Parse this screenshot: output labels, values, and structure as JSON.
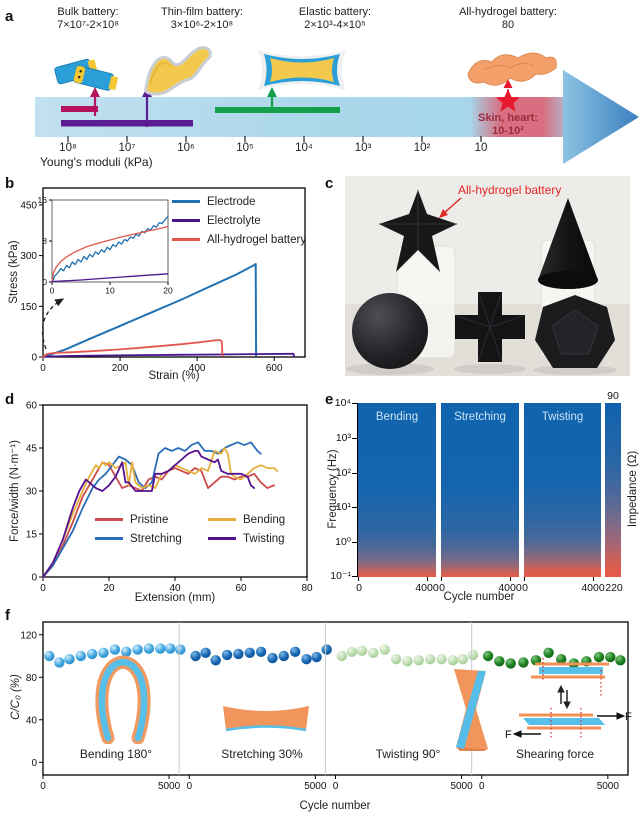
{
  "panels": {
    "a": "a",
    "b": "b",
    "c": "c",
    "d": "d",
    "e": "e",
    "f": "f"
  },
  "panel_a": {
    "batteries": [
      {
        "name": "Bulk battery:",
        "range": "7×10⁷-2×10⁸"
      },
      {
        "name": "Thin-film battery:",
        "range": "3×10⁶-2×10⁸"
      },
      {
        "name": "Elastic battery:",
        "range": "2×10³-4×10⁵"
      },
      {
        "name": "All-hydrogel battery:",
        "range": "80"
      }
    ],
    "skin": {
      "label": "Skin, heart:",
      "range": "10-10²"
    },
    "ticks": [
      "10⁸",
      "10⁷",
      "10⁶",
      "10⁵",
      "10⁴",
      "10³",
      "10²",
      "10"
    ],
    "axis_label": "Young's moduli (kPa)",
    "colors": {
      "bulk_bar": "#b5135c",
      "film_bar": "#5c1d94",
      "elastic_bar": "#14a04a",
      "star": "#e8192c",
      "shaft": "#aed7ea"
    }
  },
  "panel_c": {
    "annotation": "All-hydrogel battery"
  },
  "chart_data": [
    {
      "id": "panel_b_main",
      "type": "line",
      "xlabel": "Strain (%)",
      "ylabel": "Stress (kPa)",
      "xlim": [
        0,
        680
      ],
      "ylim": [
        0,
        500
      ],
      "xticks": [
        0,
        200,
        400,
        600
      ],
      "yticks": [
        0,
        150,
        300,
        450
      ],
      "series": [
        {
          "name": "Electrode",
          "color": "#2272b2",
          "width": 2,
          "x": [
            0,
            20,
            60,
            120,
            200,
            280,
            360,
            440,
            500,
            548,
            552,
            553
          ],
          "y": [
            0,
            7,
            23,
            53,
            92,
            131,
            170,
            212,
            243,
            272,
            275,
            4
          ]
        },
        {
          "name": "Electrolyte",
          "color": "#4a1790",
          "width": 1.8,
          "x": [
            0,
            60,
            150,
            250,
            350,
            450,
            550,
            640,
            650,
            652
          ],
          "y": [
            1,
            3,
            4.5,
            5.5,
            6.5,
            7.5,
            8.5,
            9.5,
            9.5,
            1
          ]
        },
        {
          "name": "All-hydrogel battery",
          "color": "#e2574d",
          "width": 1.8,
          "x": [
            0,
            10,
            30,
            70,
            120,
            180,
            240,
            300,
            360,
            410,
            445,
            460,
            464,
            466
          ],
          "y": [
            0,
            9,
            12,
            14,
            17,
            21,
            26,
            32,
            38,
            44,
            49,
            50,
            46,
            3
          ]
        }
      ]
    },
    {
      "id": "panel_b_inset",
      "type": "line",
      "small": true,
      "frame": "#666",
      "xlim": [
        0,
        20
      ],
      "ylim": [
        0,
        16
      ],
      "xticks": [
        0,
        10,
        20
      ],
      "yticks": [
        0,
        8,
        16
      ],
      "series": [
        {
          "name": "Electrode",
          "color": "#2272b2",
          "width": 1.3,
          "x": [
            0,
            0.5,
            1,
            1.5,
            2,
            2.5,
            3,
            3.5,
            4,
            4.5,
            5,
            5.5,
            6,
            6.5,
            7,
            7.5,
            8,
            8.5,
            9,
            9.5,
            10,
            10.5,
            11,
            11.5,
            12,
            12.5,
            13,
            13.5,
            14,
            14.5,
            15,
            15.5,
            16,
            16.5,
            17,
            17.5,
            18,
            18.5,
            19,
            19.5,
            20
          ],
          "y": [
            0,
            1.2,
            1.8,
            2.6,
            2.2,
            3.2,
            2.8,
            3.9,
            3.4,
            4.4,
            3.9,
            5,
            4.4,
            5.4,
            4.9,
            5.9,
            5.4,
            6.3,
            5.8,
            6.8,
            6.3,
            7.3,
            6.9,
            7.8,
            7.4,
            8.3,
            8,
            8.8,
            8.5,
            9.3,
            9,
            9.9,
            9.6,
            10.4,
            10.1,
            11,
            10.7,
            11.6,
            11.4,
            12.2,
            12.8
          ]
        },
        {
          "name": "All-hydrogel battery",
          "color": "#e2574d",
          "width": 1.3,
          "x": [
            0,
            0.3,
            0.8,
            1.5,
            2.5,
            4,
            6,
            8,
            10,
            12,
            14,
            16,
            18,
            20
          ],
          "y": [
            0,
            2,
            3,
            4,
            4.9,
            5.9,
            6.9,
            7.6,
            8.2,
            8.8,
            9.3,
            9.8,
            10.3,
            10.8
          ]
        },
        {
          "name": "Electrolyte",
          "color": "#4a1790",
          "width": 1.3,
          "x": [
            0,
            5,
            10,
            15,
            20
          ],
          "y": [
            0.1,
            0.4,
            0.8,
            1.2,
            1.6
          ]
        }
      ]
    },
    {
      "id": "panel_d",
      "type": "line",
      "xlabel": "Extension (mm)",
      "ylabel": "Force/width (N·m⁻¹)",
      "xlim": [
        0,
        80
      ],
      "ylim": [
        0,
        60
      ],
      "xticks": [
        0,
        20,
        40,
        60,
        80
      ],
      "yticks": [
        0,
        15,
        30,
        45,
        60
      ],
      "series": [
        {
          "name": "Pristine",
          "color": "#cc4a4a",
          "width": 1.8,
          "x": [
            0,
            3,
            6,
            9,
            12,
            14,
            16,
            18,
            20,
            22,
            24,
            26,
            28,
            30,
            32,
            34,
            36,
            38,
            40,
            42,
            44,
            46,
            48,
            50,
            52,
            54,
            56,
            58,
            60,
            62,
            64,
            66,
            68,
            70
          ],
          "y": [
            0,
            4,
            11,
            19,
            28,
            32,
            36,
            40,
            39,
            35,
            31,
            32,
            31,
            30,
            34,
            35,
            34,
            37,
            38,
            37,
            36,
            38,
            37,
            31,
            33,
            35,
            35,
            34,
            35,
            35,
            36,
            33,
            31,
            32
          ]
        },
        {
          "name": "Stretching",
          "color": "#2a6db8",
          "width": 1.8,
          "x": [
            0,
            3,
            6,
            9,
            12,
            15,
            17,
            19,
            21,
            23,
            25,
            27,
            29,
            31,
            33,
            35,
            37,
            39,
            41,
            43,
            45,
            47,
            49,
            51,
            53,
            55,
            57,
            59,
            61,
            63,
            65,
            66
          ],
          "y": [
            0,
            4,
            10,
            16,
            24,
            31,
            34,
            36,
            39,
            42,
            41,
            39,
            33,
            31,
            33,
            43,
            45,
            44,
            45,
            44,
            46,
            47,
            44,
            44,
            43,
            45,
            46,
            47,
            46,
            47,
            44,
            43
          ]
        },
        {
          "name": "Bending",
          "color": "#e6af3c",
          "width": 1.8,
          "x": [
            0,
            3,
            6,
            9,
            12,
            14,
            16,
            17,
            18,
            19,
            20,
            22,
            24,
            25,
            26,
            27,
            28,
            30,
            32,
            34,
            36,
            38,
            40,
            42,
            44,
            46,
            48,
            50,
            52,
            54,
            55,
            56,
            57,
            58,
            60,
            62,
            64,
            66,
            68,
            70,
            71
          ],
          "y": [
            0,
            5,
            13,
            22,
            30,
            35,
            39,
            38,
            40,
            39,
            40,
            38,
            39,
            40,
            32,
            40,
            33,
            31,
            32,
            31,
            36,
            37,
            39,
            38,
            37,
            36,
            38,
            37,
            44,
            43,
            45,
            43,
            36,
            35,
            34,
            36,
            38,
            39,
            38,
            38,
            37
          ]
        },
        {
          "name": "Twisting",
          "color": "#55118f",
          "width": 1.8,
          "x": [
            0,
            3,
            6,
            9,
            11,
            13,
            14,
            16,
            18,
            20,
            22,
            24,
            25,
            26,
            28,
            30,
            32,
            33,
            34,
            36,
            38,
            40,
            42,
            44,
            46,
            47,
            48,
            50,
            52,
            53,
            54,
            56,
            58,
            60,
            62,
            63,
            64
          ],
          "y": [
            0,
            5,
            13,
            24,
            30,
            34,
            33,
            31,
            30,
            32,
            35,
            40,
            33,
            33,
            30,
            30,
            30,
            30,
            36,
            36,
            37,
            39,
            41,
            43,
            44,
            44,
            42,
            41,
            40,
            41,
            37,
            36,
            36,
            36,
            35,
            32,
            31
          ]
        }
      ]
    },
    {
      "id": "panel_e",
      "type": "heatmap",
      "xlabel": "Cycle number",
      "ylabel": "Frequency (Hz)",
      "sections": [
        "Bending",
        "Stretching",
        "Twisting"
      ],
      "yticks": [
        "10⁴",
        "10³",
        "10²",
        "10¹",
        "10⁰",
        "10⁻¹"
      ],
      "xticks": [
        "0",
        "4000"
      ],
      "colorbar": {
        "top": "90",
        "bottom": "220",
        "label": "Impedance (Ω)",
        "high_color": "#1063ad",
        "low_color": "#e55c49"
      }
    },
    {
      "id": "panel_f",
      "type": "scatter_sections",
      "xlabel": "Cycle number",
      "ylabel": "C/C₀ (%)",
      "xlim": [
        0,
        23200
      ],
      "ylim": [
        -12,
        132
      ],
      "yticks": [
        0,
        40,
        80,
        120
      ],
      "section_width": 5800,
      "xsection_ticks": [
        0,
        5000
      ],
      "f_arrow_label": "F",
      "sphere_colors": [
        "#3fa3dd",
        "#1565b0",
        "#b7d9aa",
        "#1b7c1e"
      ],
      "sections": [
        {
          "label": "Bending 180°",
          "x": [
            250,
            650,
            1050,
            1500,
            1950,
            2400,
            2850,
            3300,
            3750,
            4200,
            4650,
            5050,
            5450
          ],
          "values": [
            100,
            94,
            97,
            100,
            102,
            103,
            106,
            104,
            106,
            107,
            107,
            107,
            106
          ]
        },
        {
          "label": "Stretching 30%",
          "x": [
            250,
            650,
            1050,
            1500,
            1950,
            2400,
            2850,
            3300,
            3750,
            4200,
            4650,
            5050,
            5450
          ],
          "values": [
            100,
            103,
            96,
            101,
            102,
            103,
            104,
            98,
            100,
            104,
            97,
            99,
            106
          ]
        },
        {
          "label": "Twisting 90°",
          "x": [
            250,
            650,
            1050,
            1500,
            1950,
            2400,
            2850,
            3300,
            3750,
            4200,
            4650,
            5050,
            5450
          ],
          "values": [
            100,
            104,
            105,
            103,
            106,
            97,
            95,
            96,
            97,
            97,
            96,
            97,
            101
          ]
        },
        {
          "label": "Shearing force",
          "x": [
            250,
            700,
            1150,
            1650,
            2150,
            2650,
            3150,
            3650,
            4150,
            4650,
            5100,
            5500
          ],
          "values": [
            100,
            95,
            93,
            94,
            96,
            103,
            97,
            93,
            95,
            99,
            99,
            96
          ]
        }
      ]
    }
  ]
}
